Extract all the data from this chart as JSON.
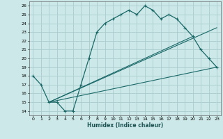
{
  "xlabel": "Humidex (Indice chaleur)",
  "ylabel": "",
  "background_color": "#cce8e8",
  "grid_color": "#aacccc",
  "line_color": "#1a6868",
  "xlim": [
    -0.5,
    23.5
  ],
  "ylim": [
    13.5,
    26.5
  ],
  "xticks": [
    0,
    1,
    2,
    3,
    4,
    5,
    6,
    7,
    8,
    9,
    10,
    11,
    12,
    13,
    14,
    15,
    16,
    17,
    18,
    19,
    20,
    21,
    22,
    23
  ],
  "yticks": [
    14,
    15,
    16,
    17,
    18,
    19,
    20,
    21,
    22,
    23,
    24,
    25,
    26
  ],
  "line1_x": [
    0,
    1,
    2,
    3,
    4,
    5,
    6,
    7,
    8,
    9,
    10,
    11,
    12,
    13,
    14,
    15,
    16,
    17,
    18,
    19,
    20,
    21,
    22,
    23
  ],
  "line1_y": [
    18,
    17,
    15,
    15,
    14,
    14,
    17,
    20,
    23,
    24,
    24.5,
    25,
    25.5,
    25,
    26,
    25.5,
    24.5,
    25,
    24.5,
    23.5,
    22.5,
    21,
    20,
    19
  ],
  "line2_x": [
    2,
    20
  ],
  "line2_y": [
    15,
    22.5
  ],
  "line3_x": [
    2,
    23
  ],
  "line3_y": [
    15,
    19
  ],
  "line4_x": [
    2,
    23
  ],
  "line4_y": [
    15,
    23.5
  ]
}
